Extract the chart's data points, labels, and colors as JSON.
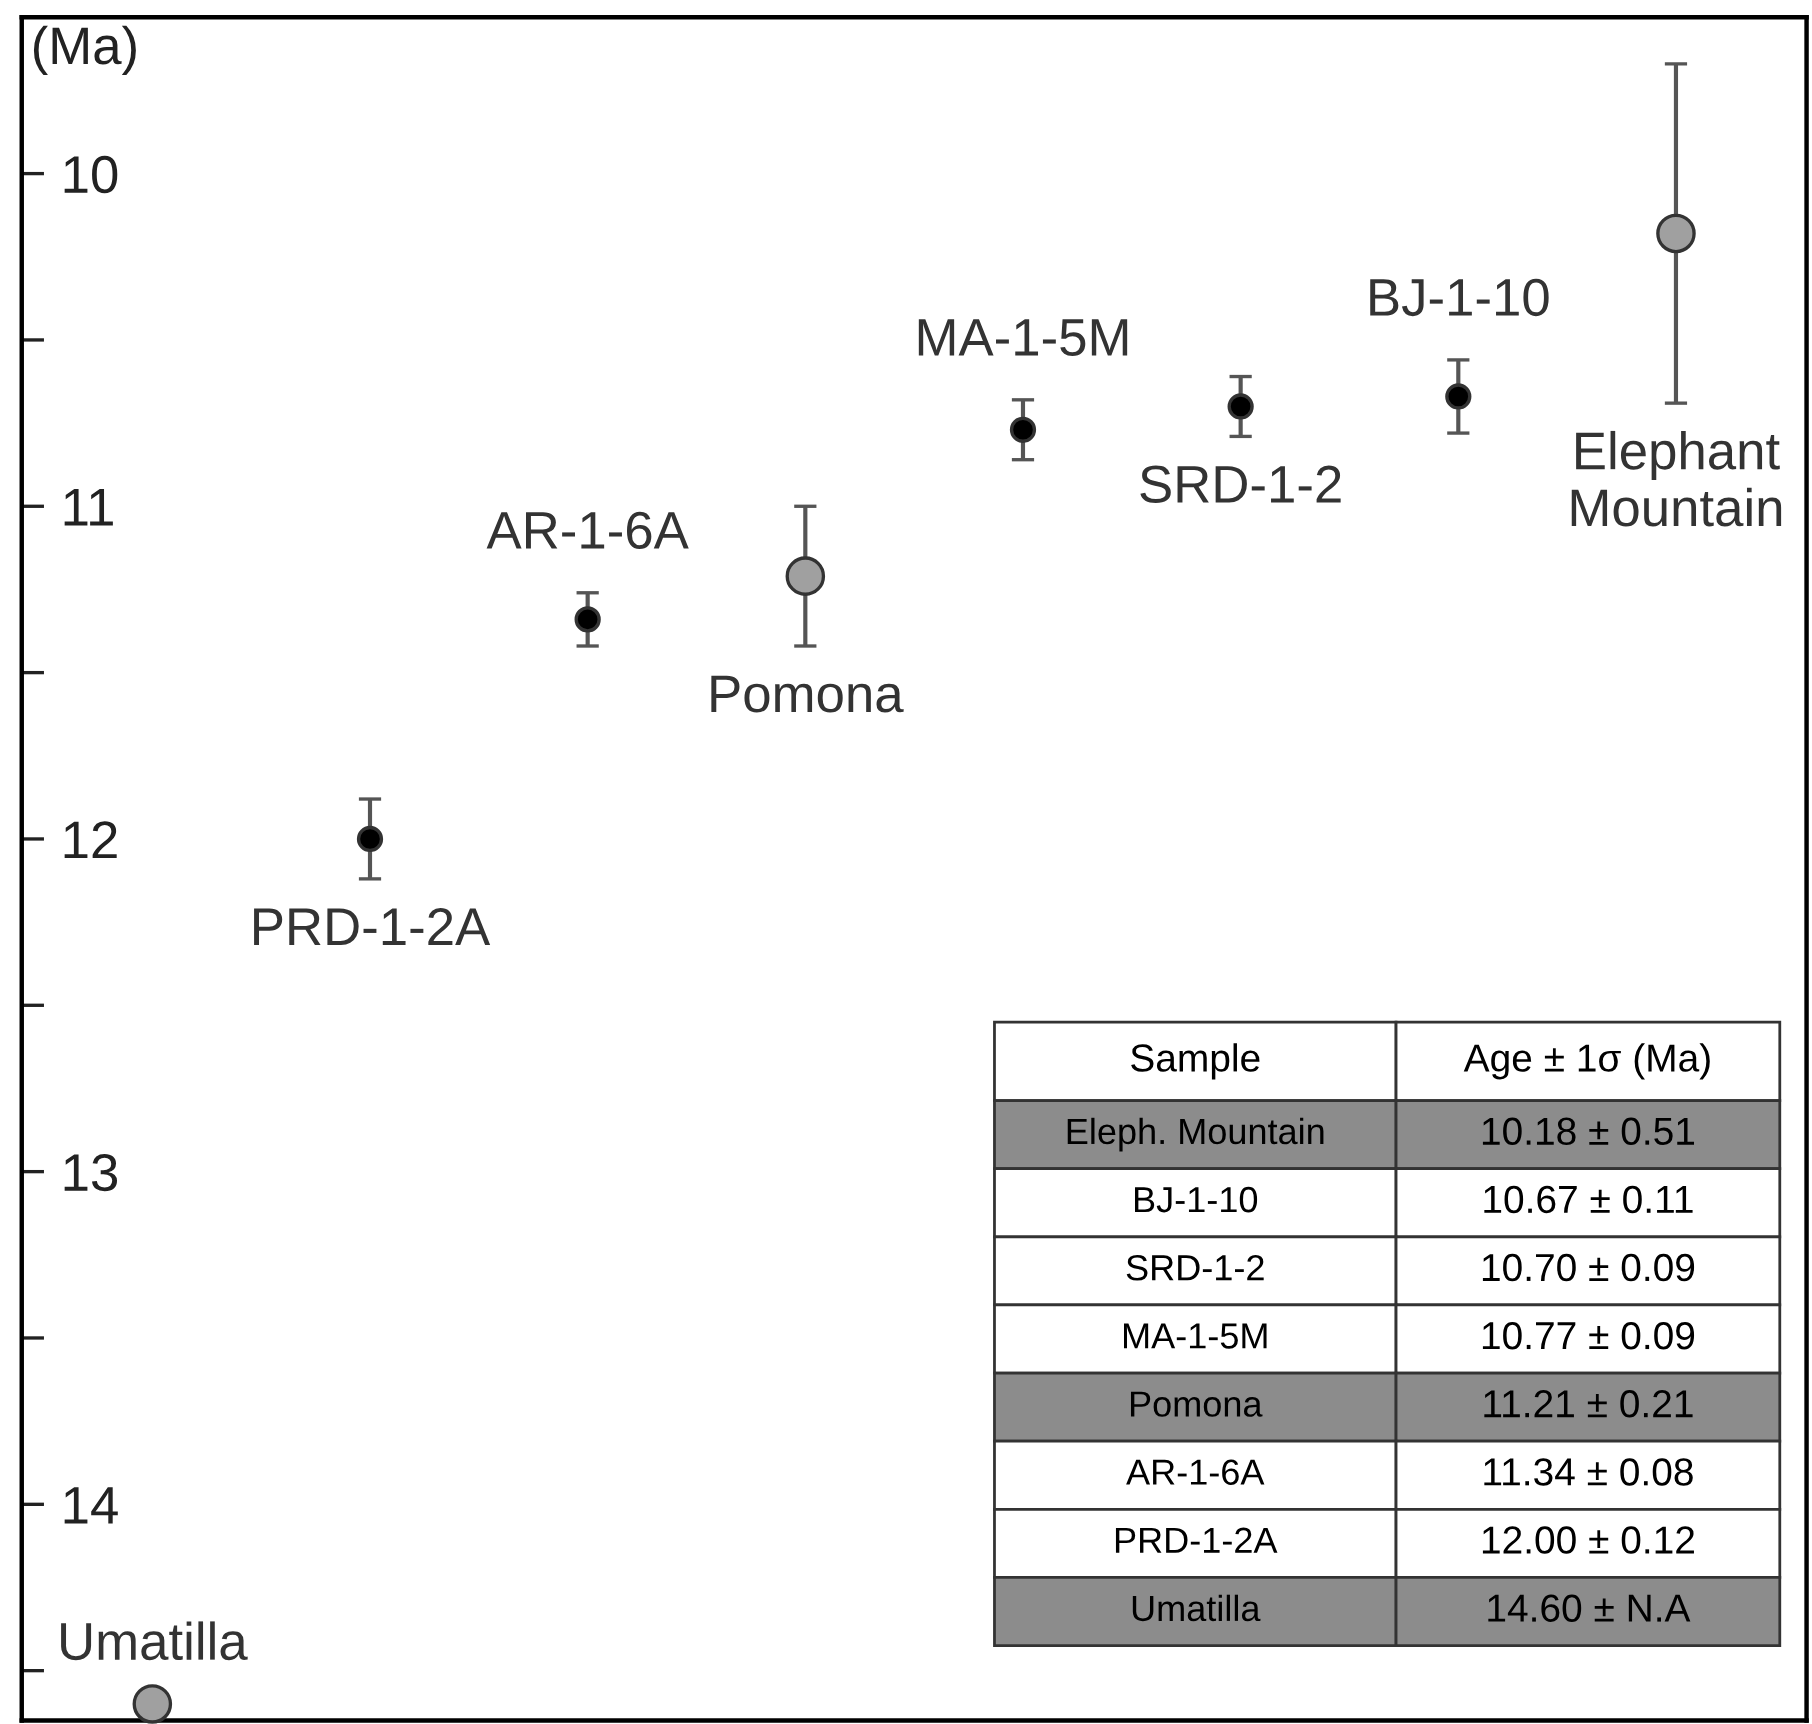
{
  "chart_data": {
    "type": "scatter",
    "ylabel": "(Ma)",
    "categories": [
      "Umatilla",
      "PRD-1-2A",
      "AR-1-6A",
      "Pomona",
      "MA-1-5M",
      "SRD-1-2",
      "BJ-1-10",
      "Elephant\nMountain"
    ],
    "values": [
      14.6,
      12.0,
      11.34,
      11.21,
      10.77,
      10.7,
      10.67,
      10.18
    ],
    "errors": [
      null,
      0.12,
      0.08,
      0.21,
      0.09,
      0.09,
      0.11,
      0.51
    ],
    "colors": [
      "#a0a0a0",
      "#000000",
      "#000000",
      "#a0a0a0",
      "#000000",
      "#000000",
      "#000000",
      "#a0a0a0"
    ],
    "sizes": [
      1,
      0.4,
      0.4,
      1,
      0.4,
      0.4,
      0.4,
      1
    ],
    "annotations": [
      "Sample",
      "Age ± 1σ (Ma)",
      "Eleph. Mountain",
      "10.18 ± 0.51",
      "BJ-1-10",
      "10.67 ± 0.11",
      "SRD-1-2",
      "10.70 ± 0.09",
      "MA-1-5M",
      "10.77 ± 0.09",
      "Pomona",
      "11.21 ± 0.21",
      "AR-1-6A",
      "11.34 ± 0.08",
      "PRD-1-2A",
      "12.00 ± 0.12",
      "Umatilla",
      "14.60 ± N.A"
    ],
    "ylim": [
      14.65,
      9.53
    ],
    "yticks": [
      10,
      {
        "value": 10.5,
        "label": null
      },
      11,
      {
        "value": 11.5,
        "label": null
      },
      12,
      {
        "value": 12.5,
        "label": null
      },
      13,
      {
        "value": 13.5,
        "label": null
      },
      14,
      {
        "value": 14.5,
        "label": null
      }
    ],
    "tick_labels": "y",
    "marker": "circle",
    "grid": false
  }
}
